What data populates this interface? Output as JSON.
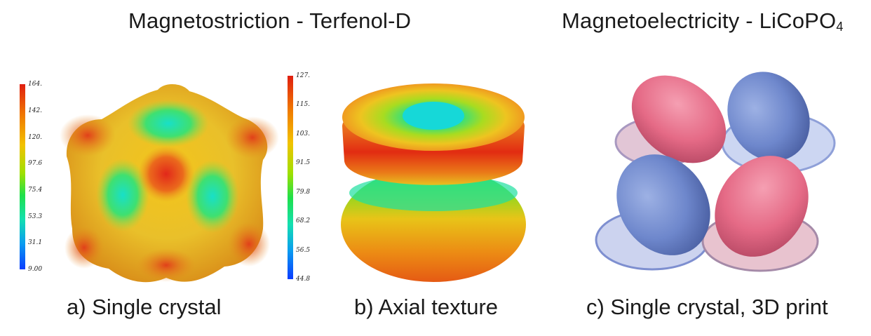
{
  "titles": {
    "magnetostriction": "Magnetostriction - Terfenol-D",
    "magnetoelectricity_main": "Magnetoelectricity - LiCoPO",
    "magnetoelectricity_sub": "4"
  },
  "captions": {
    "a": "a) Single crystal",
    "b": "b) Axial texture",
    "c": "c) Single crystal, 3D print"
  },
  "colorbar_a": {
    "ticks": [
      "164.",
      "142.",
      "120.",
      "97.6",
      "75.4",
      "53.3",
      "31.1",
      "9.00"
    ]
  },
  "colorbar_b": {
    "ticks": [
      "127.",
      "115.",
      "103.",
      "91.5",
      "79.8",
      "68.2",
      "56.5",
      "44.8"
    ]
  },
  "colors": {
    "high": "#e01e10",
    "upper": "#f2c200",
    "mid": "#7ed500",
    "lower": "#13e0b0",
    "low": "#0a3cff",
    "lobe_red": "#e56a86",
    "lobe_blue": "#6e87cc"
  }
}
